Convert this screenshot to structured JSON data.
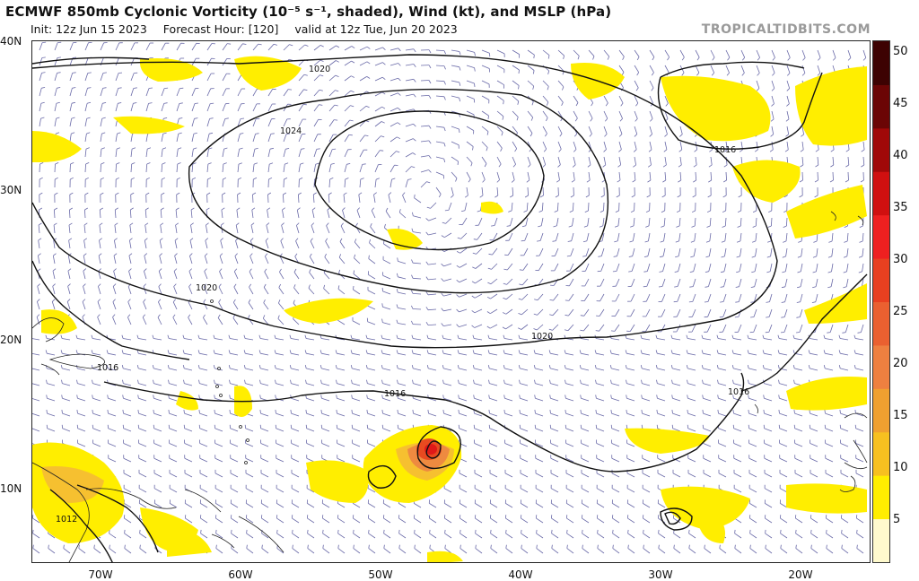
{
  "header": {
    "title": "ECMWF 850mb Cyclonic Vorticity (10⁻⁵ s⁻¹, shaded), Wind (kt), and MSLP (hPa)",
    "init": "Init: 12z Jun 15 2023",
    "forecast_hour": "Forecast Hour: [120]",
    "valid": "valid at 12z Tue, Jun 20 2023",
    "site": "TROPICALTIDBITS.COM"
  },
  "axes": {
    "lat_labels": [
      "40N",
      "30N",
      "20N",
      "10N"
    ],
    "lon_labels": [
      "70W",
      "60W",
      "50W",
      "40W",
      "30W",
      "20W"
    ]
  },
  "isobar_labels": [
    "1020",
    "1024",
    "1016",
    "1020",
    "1020",
    "1016",
    "1016",
    "1016",
    "1012"
  ],
  "colorbar": {
    "ticks": [
      "50",
      "45",
      "40",
      "35",
      "30",
      "25",
      "20",
      "15",
      "10",
      "5"
    ],
    "colors": [
      "#fffacd",
      "#ffee00",
      "#f7c020",
      "#f0a030",
      "#ee8040",
      "#ea6030",
      "#e84020",
      "#ee2020",
      "#d01010",
      "#a00808",
      "#6b0505",
      "#3d0202"
    ]
  }
}
